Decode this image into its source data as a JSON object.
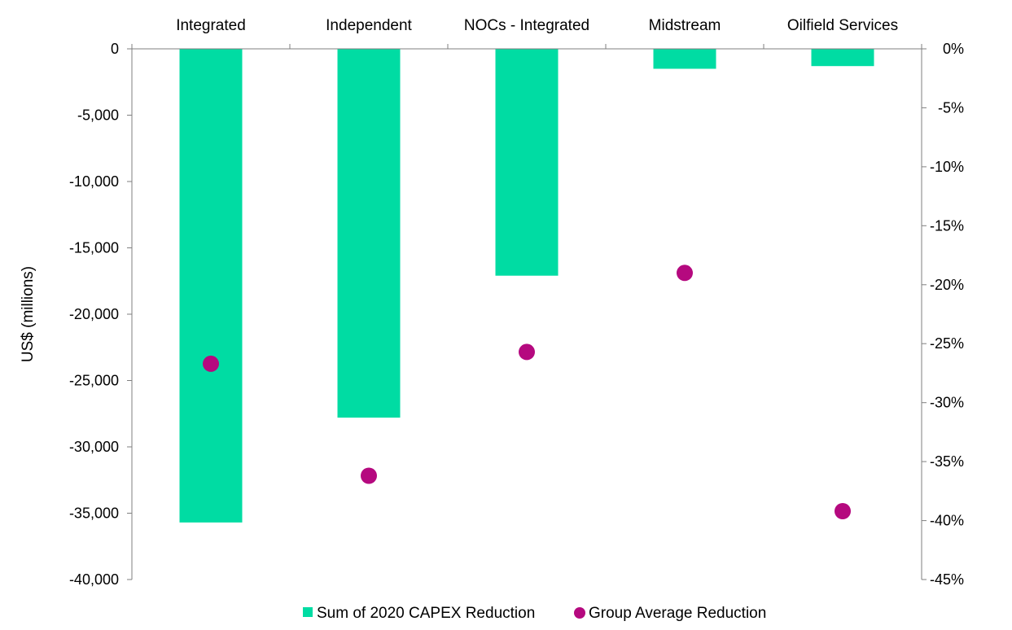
{
  "chart_data": {
    "type": "bar",
    "title": "",
    "xlabel": "",
    "ylabel": "US$ (millions)",
    "y2label": "",
    "categories": [
      "Integrated",
      "Independent",
      "NOCs - Integrated",
      "Midstream",
      "Oilfield Services"
    ],
    "series": [
      {
        "name": "Sum of 2020 CAPEX Reduction",
        "type": "bar",
        "axis": "left",
        "values": [
          -35700,
          -27800,
          -17100,
          -1500,
          -1300
        ]
      },
      {
        "name": "Group Average Reduction",
        "type": "scatter",
        "axis": "right",
        "values": [
          -26.7,
          -36.2,
          -25.7,
          -19.0,
          -39.2
        ]
      }
    ],
    "ylim": [
      -40000,
      0
    ],
    "y_ticks": [
      0,
      -5000,
      -10000,
      -15000,
      -20000,
      -25000,
      -30000,
      -35000,
      -40000
    ],
    "y_tick_labels": [
      "0",
      "-5,000",
      "-10,000",
      "-15,000",
      "-20,000",
      "-25,000",
      "-30,000",
      "-35,000",
      "-40,000"
    ],
    "y2lim": [
      -45,
      0
    ],
    "y2_ticks": [
      0,
      -5,
      -10,
      -15,
      -20,
      -25,
      -30,
      -35,
      -40,
      -45
    ],
    "y2_tick_labels": [
      "0%",
      "-5%",
      "-10%",
      "-15%",
      "-20%",
      "-25%",
      "-30%",
      "-35%",
      "-40%",
      "-45%"
    ],
    "category_axis_position": "top",
    "grid": false,
    "legend": "bottom-center"
  },
  "colors": {
    "bar": "#00dca3",
    "marker": "#b5097f",
    "axis": "#7f7f7f"
  }
}
